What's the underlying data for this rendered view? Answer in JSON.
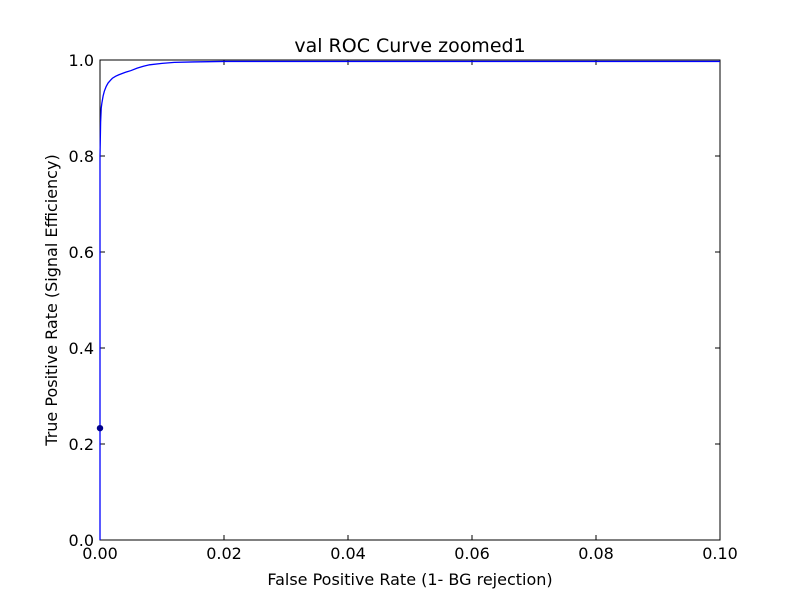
{
  "chart_data": {
    "type": "line",
    "title": "val ROC Curve zoomed1",
    "xlabel": "False Positive Rate (1- BG rejection)",
    "ylabel": "True Positive Rate (Signal Efficiency)",
    "xlim": [
      0.0,
      0.1
    ],
    "ylim": [
      0.0,
      1.0
    ],
    "xticks": [
      "0.00",
      "0.02",
      "0.04",
      "0.06",
      "0.08",
      "0.10"
    ],
    "yticks": [
      "0.0",
      "0.2",
      "0.4",
      "0.6",
      "0.8",
      "1.0"
    ],
    "grid": false,
    "series": [
      {
        "color": "#0000ff",
        "x": [
          0.0,
          0.0,
          0.0001,
          0.0002,
          0.0003,
          0.0005,
          0.0007,
          0.001,
          0.0013,
          0.0017,
          0.002,
          0.0025,
          0.003,
          0.004,
          0.005,
          0.006,
          0.007,
          0.008,
          0.01,
          0.012,
          0.015,
          0.02,
          0.03,
          0.05,
          0.07,
          0.1
        ],
        "y": [
          0.0,
          0.8,
          0.87,
          0.9,
          0.91,
          0.925,
          0.935,
          0.945,
          0.952,
          0.958,
          0.962,
          0.966,
          0.969,
          0.974,
          0.978,
          0.983,
          0.987,
          0.99,
          0.993,
          0.995,
          0.996,
          0.997,
          0.997,
          0.997,
          0.997,
          0.997
        ]
      }
    ],
    "markers": [
      {
        "x": 0.0,
        "y": 0.233,
        "color": "#00008b"
      }
    ]
  }
}
